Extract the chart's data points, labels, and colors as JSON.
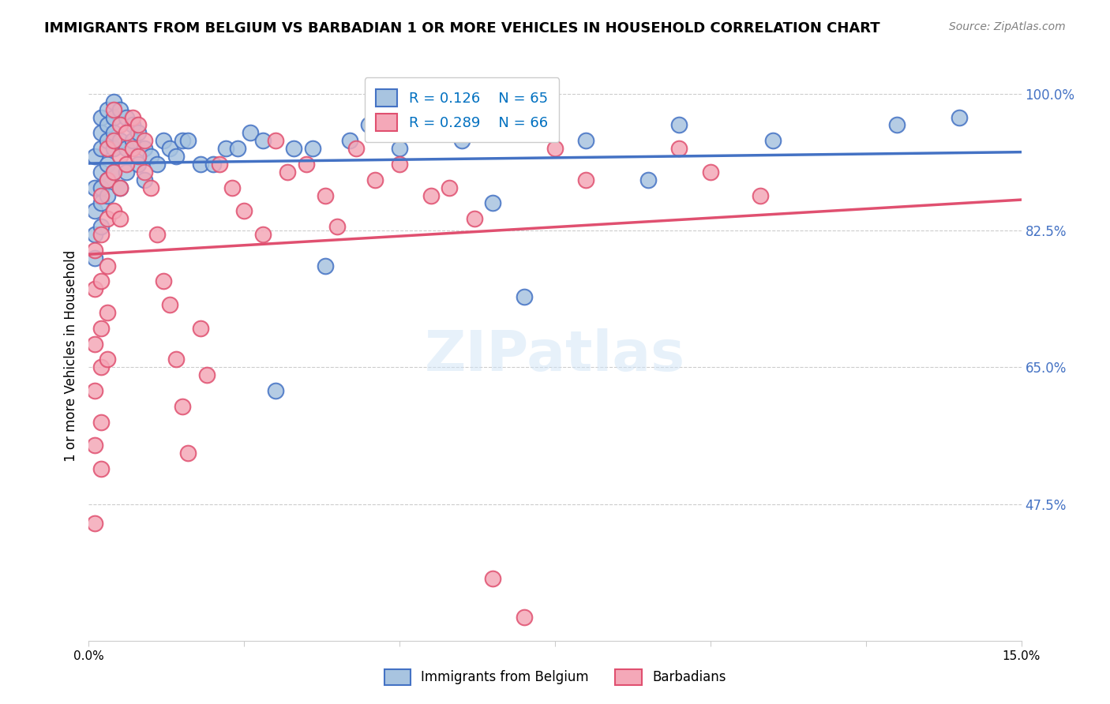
{
  "title": "IMMIGRANTS FROM BELGIUM VS BARBADIAN 1 OR MORE VEHICLES IN HOUSEHOLD CORRELATION CHART",
  "source": "Source: ZipAtlas.com",
  "xlabel": "",
  "ylabel": "1 or more Vehicles in Household",
  "xlim": [
    0.0,
    0.15
  ],
  "ylim": [
    0.3,
    1.03
  ],
  "yticks": [
    0.475,
    0.65,
    0.825,
    1.0
  ],
  "ytick_labels": [
    "47.5%",
    "65.0%",
    "82.5%",
    "100.0%"
  ],
  "xticks": [
    0.0,
    0.025,
    0.05,
    0.075,
    0.1,
    0.125,
    0.15
  ],
  "xtick_labels": [
    "0.0%",
    "",
    "",
    "",
    "",
    "",
    "15.0%"
  ],
  "belgium_color": "#a8c4e0",
  "barbadian_color": "#f4a8b8",
  "belgium_line_color": "#4472c4",
  "barbadian_line_color": "#e05070",
  "R_belgium": 0.126,
  "N_belgium": 65,
  "R_barbadian": 0.289,
  "N_barbadian": 66,
  "legend_belgium": "Immigrants from Belgium",
  "legend_barbadian": "Barbadians",
  "watermark": "ZIPatlas",
  "belgium_x": [
    0.001,
    0.001,
    0.001,
    0.001,
    0.001,
    0.002,
    0.002,
    0.002,
    0.002,
    0.002,
    0.002,
    0.002,
    0.003,
    0.003,
    0.003,
    0.003,
    0.003,
    0.003,
    0.004,
    0.004,
    0.004,
    0.004,
    0.004,
    0.005,
    0.005,
    0.005,
    0.006,
    0.006,
    0.006,
    0.007,
    0.007,
    0.008,
    0.008,
    0.009,
    0.009,
    0.01,
    0.011,
    0.012,
    0.013,
    0.014,
    0.015,
    0.016,
    0.018,
    0.02,
    0.022,
    0.024,
    0.026,
    0.028,
    0.03,
    0.033,
    0.036,
    0.038,
    0.042,
    0.045,
    0.05,
    0.055,
    0.06,
    0.065,
    0.07,
    0.08,
    0.09,
    0.095,
    0.11,
    0.13,
    0.14
  ],
  "belgium_y": [
    0.92,
    0.88,
    0.85,
    0.82,
    0.79,
    0.97,
    0.95,
    0.93,
    0.9,
    0.88,
    0.86,
    0.83,
    0.98,
    0.96,
    0.94,
    0.91,
    0.89,
    0.87,
    0.99,
    0.97,
    0.95,
    0.93,
    0.9,
    0.98,
    0.94,
    0.88,
    0.97,
    0.93,
    0.9,
    0.96,
    0.94,
    0.95,
    0.91,
    0.93,
    0.89,
    0.92,
    0.91,
    0.94,
    0.93,
    0.92,
    0.94,
    0.94,
    0.91,
    0.91,
    0.93,
    0.93,
    0.95,
    0.94,
    0.62,
    0.93,
    0.93,
    0.78,
    0.94,
    0.96,
    0.93,
    0.95,
    0.94,
    0.86,
    0.74,
    0.94,
    0.89,
    0.96,
    0.94,
    0.96,
    0.97
  ],
  "barbadian_x": [
    0.001,
    0.001,
    0.001,
    0.001,
    0.001,
    0.001,
    0.002,
    0.002,
    0.002,
    0.002,
    0.002,
    0.002,
    0.002,
    0.003,
    0.003,
    0.003,
    0.003,
    0.003,
    0.003,
    0.004,
    0.004,
    0.004,
    0.004,
    0.005,
    0.005,
    0.005,
    0.005,
    0.006,
    0.006,
    0.007,
    0.007,
    0.008,
    0.008,
    0.009,
    0.009,
    0.01,
    0.011,
    0.012,
    0.013,
    0.014,
    0.015,
    0.016,
    0.018,
    0.019,
    0.021,
    0.023,
    0.025,
    0.028,
    0.03,
    0.032,
    0.035,
    0.038,
    0.04,
    0.043,
    0.046,
    0.05,
    0.055,
    0.058,
    0.062,
    0.065,
    0.07,
    0.075,
    0.08,
    0.095,
    0.1,
    0.108
  ],
  "barbadian_y": [
    0.45,
    0.55,
    0.62,
    0.68,
    0.75,
    0.8,
    0.87,
    0.82,
    0.76,
    0.7,
    0.65,
    0.58,
    0.52,
    0.93,
    0.89,
    0.84,
    0.78,
    0.72,
    0.66,
    0.98,
    0.94,
    0.9,
    0.85,
    0.96,
    0.92,
    0.88,
    0.84,
    0.95,
    0.91,
    0.97,
    0.93,
    0.96,
    0.92,
    0.94,
    0.9,
    0.88,
    0.82,
    0.76,
    0.73,
    0.66,
    0.6,
    0.54,
    0.7,
    0.64,
    0.91,
    0.88,
    0.85,
    0.82,
    0.94,
    0.9,
    0.91,
    0.87,
    0.83,
    0.93,
    0.89,
    0.91,
    0.87,
    0.88,
    0.84,
    0.38,
    0.33,
    0.93,
    0.89,
    0.93,
    0.9,
    0.87
  ]
}
